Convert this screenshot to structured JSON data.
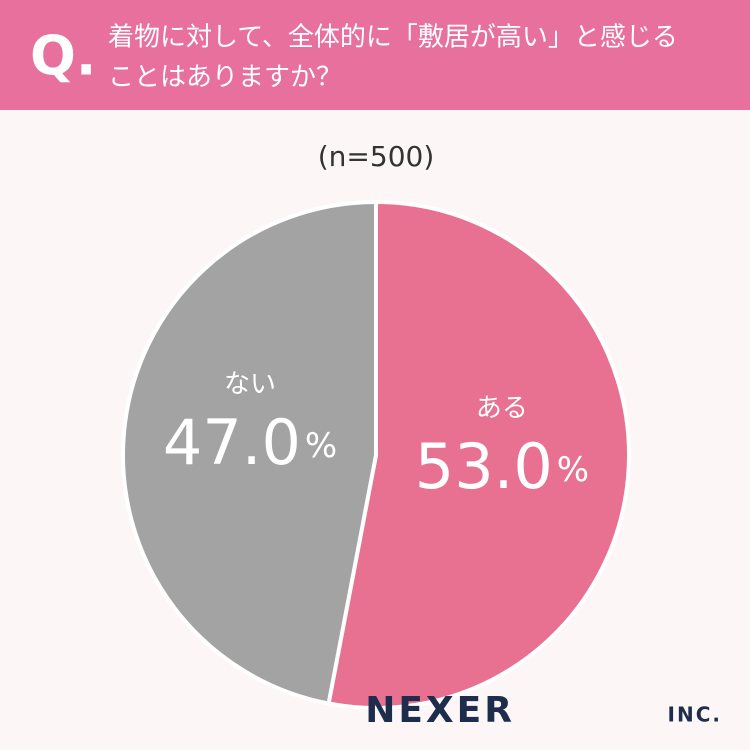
{
  "chart_data": {
    "type": "pie",
    "q_label": "Q.",
    "title": [
      "着物に対して、全体的に「敷居が高い」と感じる",
      "ことはありますか？"
    ],
    "subtitle": "(n=500)",
    "categories": [
      "ある",
      "ない"
    ],
    "values": [
      53.0,
      47.0
    ],
    "value_labels": [
      "53.0%",
      "47.0%"
    ],
    "colors": [
      "#e87191",
      "#a3a3a3"
    ],
    "logo": {
      "name": "NEXER",
      "suffix": "INC."
    }
  }
}
